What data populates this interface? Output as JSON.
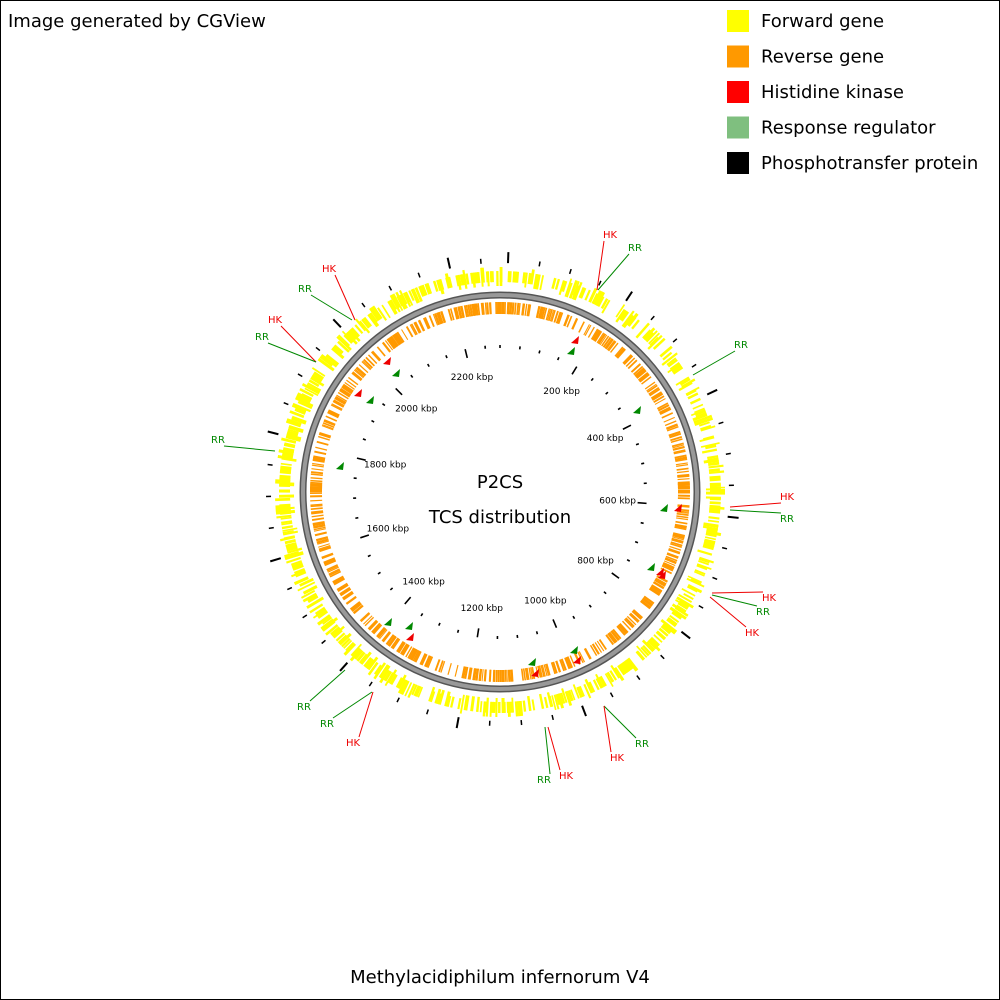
{
  "header": {
    "credit": "Image generated by CGView"
  },
  "legend": [
    {
      "label": "Forward gene",
      "color": "#ffff00"
    },
    {
      "label": "Reverse gene",
      "color": "#ff9900"
    },
    {
      "label": "Histidine kinase",
      "color": "#ff0000"
    },
    {
      "label": "Response regulator",
      "color": "#7fbf7f"
    },
    {
      "label": "Phosphotransfer protein",
      "color": "#000000"
    }
  ],
  "center": {
    "title": "P2CS",
    "subtitle": "TCS distribution"
  },
  "ticks": [
    "200 kbp",
    "400 kbp",
    "600 kbp",
    "800 kbp",
    "1000 kbp",
    "1200 kbp",
    "1400 kbp",
    "1600 kbp",
    "1800 kbp",
    "2000 kbp",
    "2200 kbp"
  ],
  "features": [
    "HK",
    "RR",
    "RR",
    "HK",
    "RR",
    "HK",
    "RR",
    "HK",
    "RR",
    "HK",
    "HK",
    "RR",
    "HK",
    "RR",
    "RR",
    "RR",
    "HK",
    "RR",
    "HK",
    "RR"
  ],
  "footer": {
    "organism": "Methylacidiphilum infernorum V4"
  }
}
